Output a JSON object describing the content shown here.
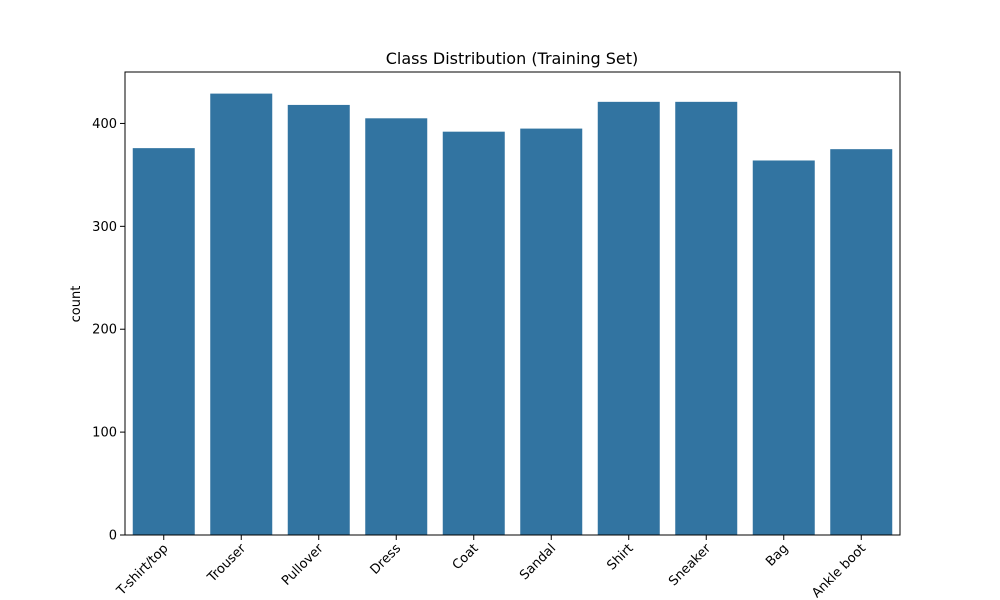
{
  "chart_data": {
    "type": "bar",
    "title": "Class Distribution (Training Set)",
    "xlabel": "",
    "ylabel": "count",
    "categories": [
      "T-shirt/top",
      "Trouser",
      "Pullover",
      "Dress",
      "Coat",
      "Sandal",
      "Shirt",
      "Sneaker",
      "Bag",
      "Ankle boot"
    ],
    "values": [
      376,
      429,
      418,
      405,
      392,
      395,
      421,
      421,
      364,
      375
    ],
    "ylim": [
      0,
      450
    ],
    "yticks": [
      0,
      100,
      200,
      300,
      400
    ],
    "bar_color": "#3274a1",
    "grid": false,
    "legend": "none",
    "xtick_rotation_deg": 45
  }
}
